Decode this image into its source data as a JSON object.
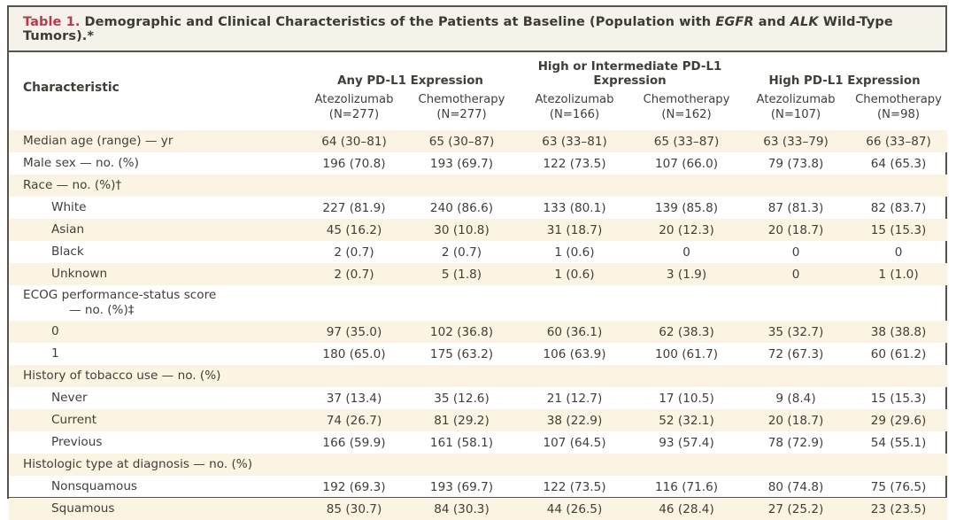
{
  "colors": {
    "table_label_accent": "#b8394d",
    "row_stripe_cream": "#fbf4e3",
    "frame_border": "#57544c",
    "title_bar_background": "#f5f2ea"
  },
  "table": {
    "heading_label": "Table 1.",
    "title": {
      "pre": "Demographic and Clinical Characteristics of the Patients at Baseline (Population with ",
      "gene1": "EGFR",
      "mid": " and ",
      "gene2": "ALK",
      "post": " Wild-Type Tumors).*"
    },
    "characteristic_header": "Characteristic",
    "groups": [
      {
        "label": "Any PD-L1 Expression",
        "arms": [
          {
            "name": "Atezolizumab",
            "n": "(N=277)"
          },
          {
            "name": "Chemotherapy",
            "n": "(N=277)"
          }
        ]
      },
      {
        "label": "High or Intermediate PD-L1 Expression",
        "arms": [
          {
            "name": "Atezolizumab",
            "n": "(N=166)"
          },
          {
            "name": "Chemotherapy",
            "n": "(N=162)"
          }
        ]
      },
      {
        "label": "High PD-L1 Expression",
        "arms": [
          {
            "name": "Atezolizumab",
            "n": "(N=107)"
          },
          {
            "name": "Chemotherapy",
            "n": "(N=98)"
          }
        ]
      }
    ],
    "rows": [
      {
        "label": "Median age (range) — yr",
        "indent": 0,
        "values": [
          "64 (30–81)",
          "65 (30–87)",
          "63 (33–81)",
          "65 (33–87)",
          "63 (33–79)",
          "66 (33–87)"
        ]
      },
      {
        "label": "Male sex — no. (%)",
        "indent": 0,
        "values": [
          "196 (70.8)",
          "193 (69.7)",
          "122 (73.5)",
          "107 (66.0)",
          "79 (73.8)",
          "64 (65.3)"
        ]
      },
      {
        "label": "Race — no. (%)†",
        "indent": 0,
        "values": [
          "",
          "",
          "",
          "",
          "",
          ""
        ]
      },
      {
        "label": "White",
        "indent": 1,
        "values": [
          "227 (81.9)",
          "240 (86.6)",
          "133 (80.1)",
          "139 (85.8)",
          "87 (81.3)",
          "82 (83.7)"
        ]
      },
      {
        "label": "Asian",
        "indent": 1,
        "values": [
          "45 (16.2)",
          "30 (10.8)",
          "31 (18.7)",
          "20 (12.3)",
          "20 (18.7)",
          "15 (15.3)"
        ]
      },
      {
        "label": "Black",
        "indent": 1,
        "values": [
          "2 (0.7)",
          "2 (0.7)",
          "1 (0.6)",
          "0",
          "0",
          "0"
        ]
      },
      {
        "label": "Unknown",
        "indent": 1,
        "values": [
          "2 (0.7)",
          "5 (1.8)",
          "1 (0.6)",
          "3 (1.9)",
          "0",
          "1 (1.0)"
        ]
      },
      {
        "label": "ECOG performance-status score",
        "label_line2": "— no. (%)‡",
        "indent": 0,
        "values": [
          "",
          "",
          "",
          "",
          "",
          ""
        ]
      },
      {
        "label": "0",
        "indent": 1,
        "values": [
          "97 (35.0)",
          "102 (36.8)",
          "60 (36.1)",
          "62 (38.3)",
          "35 (32.7)",
          "38 (38.8)"
        ]
      },
      {
        "label": "1",
        "indent": 1,
        "values": [
          "180 (65.0)",
          "175 (63.2)",
          "106 (63.9)",
          "100 (61.7)",
          "72 (67.3)",
          "60 (61.2)"
        ]
      },
      {
        "label": "History of tobacco use — no. (%)",
        "indent": 0,
        "values": [
          "",
          "",
          "",
          "",
          "",
          ""
        ]
      },
      {
        "label": "Never",
        "indent": 1,
        "values": [
          "37 (13.4)",
          "35 (12.6)",
          "21 (12.7)",
          "17 (10.5)",
          "9 (8.4)",
          "15 (15.3)"
        ]
      },
      {
        "label": "Current",
        "indent": 1,
        "values": [
          "74 (26.7)",
          "81 (29.2)",
          "38 (22.9)",
          "52 (32.1)",
          "20 (18.7)",
          "29 (29.6)"
        ]
      },
      {
        "label": "Previous",
        "indent": 1,
        "values": [
          "166 (59.9)",
          "161 (58.1)",
          "107 (64.5)",
          "93 (57.4)",
          "78 (72.9)",
          "54 (55.1)"
        ]
      },
      {
        "label": "Histologic type at diagnosis — no. (%)",
        "indent": 0,
        "values": [
          "",
          "",
          "",
          "",
          "",
          ""
        ]
      },
      {
        "label": "Nonsquamous",
        "indent": 1,
        "values": [
          "192 (69.3)",
          "193 (69.7)",
          "122 (73.5)",
          "116 (71.6)",
          "80 (74.8)",
          "75 (76.5)"
        ]
      },
      {
        "label": "Squamous",
        "indent": 1,
        "values": [
          "85 (30.7)",
          "84 (30.3)",
          "44 (26.5)",
          "46 (28.4)",
          "27 (25.2)",
          "23 (23.5)"
        ]
      }
    ]
  }
}
